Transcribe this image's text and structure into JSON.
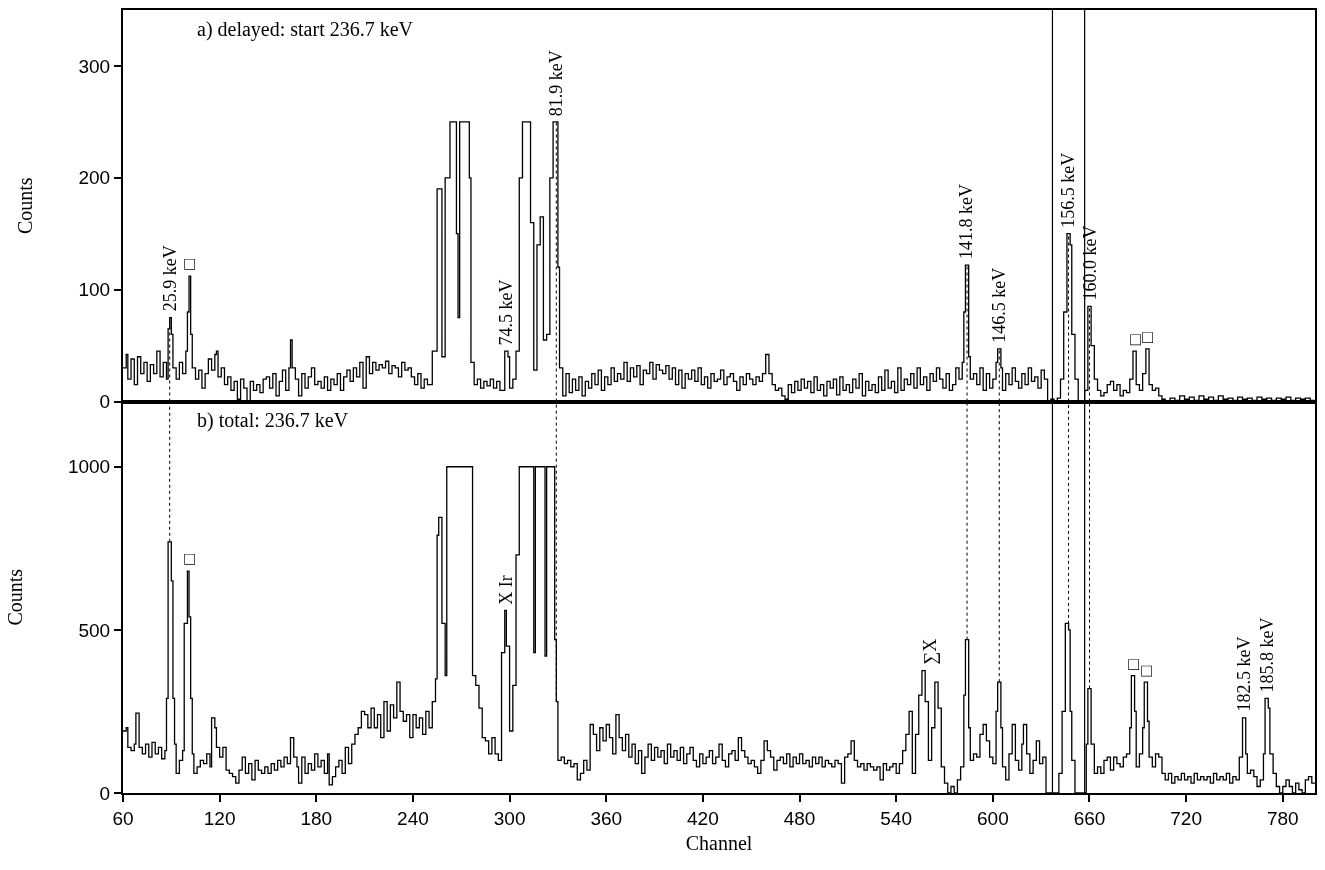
{
  "chart_data": [
    {
      "type": "step",
      "title": "a) delayed: start 236.7 keV",
      "ylabel": "Counts",
      "color": "#000000",
      "x": [
        60,
        62,
        63,
        65,
        67,
        69,
        71,
        73,
        75,
        77,
        79,
        81,
        83,
        85,
        87,
        88,
        89,
        90,
        91,
        93,
        95,
        97,
        99,
        100,
        101,
        102,
        103,
        105,
        107,
        109,
        111,
        113,
        115,
        117,
        118,
        119,
        121,
        123,
        125,
        127,
        129,
        131,
        133,
        135,
        137,
        139,
        141,
        143,
        145,
        147,
        149,
        151,
        153,
        155,
        157,
        159,
        161,
        163,
        164,
        165,
        167,
        169,
        171,
        173,
        175,
        177,
        179,
        181,
        183,
        185,
        187,
        189,
        191,
        193,
        195,
        197,
        199,
        201,
        203,
        205,
        207,
        209,
        211,
        213,
        215,
        217,
        219,
        221,
        223,
        225,
        227,
        229,
        231,
        233,
        235,
        237,
        239,
        241,
        243,
        245,
        247,
        249,
        252,
        255,
        258,
        260,
        263,
        267,
        268,
        269,
        275,
        276,
        278,
        280,
        282,
        284,
        286,
        288,
        290,
        292,
        294,
        297,
        299,
        300,
        302,
        304,
        306,
        308,
        313,
        315,
        317,
        319,
        321,
        323,
        325,
        327,
        330,
        331,
        333,
        335,
        337,
        339,
        341,
        343,
        345,
        347,
        349,
        351,
        353,
        355,
        357,
        359,
        361,
        363,
        365,
        367,
        369,
        371,
        373,
        375,
        377,
        379,
        381,
        383,
        385,
        387,
        389,
        391,
        393,
        395,
        397,
        399,
        401,
        403,
        405,
        407,
        409,
        411,
        413,
        415,
        417,
        419,
        421,
        423,
        425,
        427,
        429,
        431,
        433,
        435,
        437,
        439,
        441,
        443,
        445,
        447,
        449,
        451,
        453,
        455,
        457,
        459,
        461,
        463,
        465,
        467,
        469,
        471,
        473,
        475,
        477,
        479,
        481,
        483,
        485,
        487,
        489,
        491,
        493,
        495,
        497,
        499,
        501,
        503,
        505,
        507,
        509,
        511,
        513,
        515,
        517,
        519,
        521,
        523,
        525,
        527,
        529,
        531,
        533,
        535,
        537,
        539,
        541,
        543,
        545,
        547,
        549,
        551,
        553,
        555,
        557,
        559,
        561,
        563,
        565,
        567,
        569,
        571,
        573,
        575,
        577,
        579,
        581,
        582,
        583,
        585,
        586,
        588,
        590,
        592,
        594,
        596,
        598,
        600,
        602,
        603,
        605,
        606,
        608,
        610,
        612,
        614,
        616,
        618,
        620,
        622,
        624,
        626,
        628,
        630,
        632,
        634,
        636,
        638,
        640,
        642,
        644,
        646,
        648,
        649,
        651,
        653,
        657,
        659,
        661,
        663,
        665,
        667,
        669,
        671,
        673,
        675,
        677,
        679,
        681,
        683,
        685,
        687,
        689,
        691,
        693,
        695,
        697,
        699,
        701,
        703,
        705,
        707,
        710,
        713,
        716,
        719,
        722,
        725,
        728,
        731,
        734,
        737,
        740,
        743,
        746,
        749,
        752,
        755,
        758,
        761,
        764,
        767,
        770,
        773,
        776,
        779,
        782,
        785,
        788,
        791,
        794,
        797,
        800
      ],
      "values": [
        30,
        42,
        20,
        38,
        15,
        40,
        25,
        35,
        18,
        33,
        25,
        45,
        22,
        35,
        20,
        65,
        75,
        60,
        30,
        20,
        35,
        25,
        45,
        80,
        112,
        60,
        30,
        20,
        28,
        12,
        25,
        38,
        28,
        42,
        45,
        22,
        30,
        15,
        22,
        10,
        18,
        2,
        20,
        12,
        0,
        18,
        10,
        15,
        8,
        20,
        22,
        12,
        25,
        5,
        18,
        28,
        10,
        30,
        55,
        30,
        20,
        5,
        25,
        12,
        22,
        30,
        15,
        18,
        12,
        22,
        10,
        20,
        15,
        25,
        10,
        22,
        28,
        18,
        30,
        22,
        35,
        12,
        40,
        25,
        35,
        28,
        33,
        30,
        36,
        25,
        32,
        30,
        22,
        35,
        28,
        30,
        22,
        15,
        25,
        12,
        20,
        15,
        45,
        190,
        40,
        200,
        250,
        150,
        75,
        250,
        200,
        35,
        15,
        20,
        12,
        18,
        14,
        20,
        12,
        18,
        10,
        45,
        40,
        12,
        20,
        45,
        200,
        250,
        160,
        28,
        140,
        165,
        55,
        60,
        200,
        250,
        120,
        30,
        5,
        25,
        8,
        20,
        10,
        22,
        5,
        18,
        12,
        25,
        15,
        28,
        10,
        22,
        15,
        30,
        18,
        25,
        20,
        35,
        18,
        30,
        22,
        32,
        15,
        28,
        25,
        35,
        20,
        33,
        28,
        25,
        32,
        20,
        30,
        15,
        28,
        12,
        25,
        20,
        28,
        18,
        30,
        15,
        22,
        12,
        25,
        18,
        20,
        28,
        15,
        22,
        25,
        18,
        10,
        22,
        15,
        25,
        20,
        15,
        22,
        18,
        25,
        42,
        25,
        15,
        10,
        12,
        5,
        2,
        15,
        8,
        18,
        10,
        20,
        12,
        18,
        8,
        22,
        10,
        15,
        5,
        18,
        12,
        20,
        6,
        22,
        10,
        15,
        8,
        20,
        12,
        25,
        5,
        18,
        10,
        15,
        8,
        22,
        10,
        28,
        12,
        18,
        8,
        30,
        10,
        20,
        15,
        25,
        12,
        30,
        15,
        22,
        10,
        25,
        18,
        30,
        20,
        12,
        25,
        10,
        15,
        30,
        20,
        35,
        80,
        122,
        40,
        20,
        25,
        15,
        30,
        10,
        25,
        12,
        20,
        35,
        47,
        30,
        10,
        25,
        15,
        30,
        18,
        12,
        25,
        15,
        30,
        18,
        22,
        12,
        28,
        20,
        0,
        2,
        0,
        3,
        20,
        80,
        150,
        140,
        60,
        20,
        0,
        10,
        85,
        50,
        20,
        10,
        5,
        8,
        15,
        18,
        10,
        15,
        5,
        10,
        8,
        20,
        45,
        15,
        10,
        25,
        47,
        15,
        10,
        12,
        5,
        2,
        0,
        3,
        1,
        5,
        2,
        4,
        1,
        5,
        2,
        4,
        1,
        5,
        2,
        3,
        1,
        4,
        2,
        3,
        1,
        4,
        2,
        3,
        1,
        3,
        2,
        4,
        1,
        3,
        2,
        3,
        1,
        1
      ],
      "xlim": [
        60,
        800
      ],
      "ylim": [
        0,
        350
      ],
      "xticks": [
        60,
        120,
        180,
        240,
        300,
        360,
        420,
        480,
        540,
        600,
        660,
        720,
        780
      ],
      "yticks": [
        0,
        100,
        200,
        300
      ],
      "tick_labels": "y",
      "annotations": [
        {
          "text": "25.9 keV",
          "x": 89,
          "y": 75
        },
        {
          "text": "□",
          "x": 101,
          "y": 112
        },
        {
          "text": "74.5 keV",
          "x": 298,
          "y": 45
        },
        {
          "text": "81.9 keV",
          "x": 329,
          "y": 250
        },
        {
          "text": "141.8 keV",
          "x": 583,
          "y": 122
        },
        {
          "text": "146.5 keV",
          "x": 604,
          "y": 47
        },
        {
          "text": "156.5 keV",
          "x": 647,
          "y": 150
        },
        {
          "text": "160.0 keV",
          "x": 660,
          "y": 85
        },
        {
          "text": "□",
          "x": 688,
          "y": 45
        },
        {
          "text": "□",
          "x": 696,
          "y": 47
        }
      ],
      "ref_lines": [
        {
          "axis": "x",
          "value": 637,
          "line_style": "solid"
        },
        {
          "axis": "x",
          "value": 657,
          "line_style": "solid"
        },
        {
          "axis": "x",
          "value": 89,
          "line_style": "dotted"
        },
        {
          "axis": "x",
          "value": 329,
          "line_style": "dotted"
        },
        {
          "axis": "x",
          "value": 584,
          "line_style": "dotted"
        },
        {
          "axis": "x",
          "value": 604,
          "line_style": "dotted"
        },
        {
          "axis": "x",
          "value": 647,
          "line_style": "dotted"
        },
        {
          "axis": "x",
          "value": 660,
          "line_style": "dotted"
        }
      ]
    },
    {
      "type": "step",
      "title": "b) total: 236.7 keV",
      "xlabel": "Channel",
      "ylabel": "Counts",
      "color": "#000000",
      "x": [
        60,
        62,
        63,
        65,
        67,
        68,
        70,
        72,
        74,
        76,
        78,
        80,
        82,
        84,
        86,
        87,
        88,
        90,
        91,
        92,
        93,
        95,
        97,
        98,
        100,
        101,
        102,
        103,
        104,
        106,
        108,
        110,
        112,
        114,
        115,
        117,
        118,
        120,
        122,
        124,
        126,
        128,
        130,
        132,
        134,
        136,
        138,
        140,
        142,
        144,
        146,
        148,
        150,
        152,
        154,
        156,
        158,
        160,
        162,
        164,
        166,
        168,
        169,
        171,
        173,
        175,
        177,
        179,
        181,
        183,
        185,
        187,
        188,
        190,
        192,
        194,
        196,
        198,
        200,
        202,
        204,
        206,
        208,
        210,
        212,
        214,
        216,
        218,
        220,
        222,
        224,
        226,
        228,
        230,
        232,
        234,
        236,
        238,
        240,
        242,
        244,
        246,
        248,
        250,
        252,
        254,
        255,
        256,
        258,
        260,
        261,
        277,
        279,
        281,
        283,
        285,
        287,
        289,
        291,
        293,
        295,
        297,
        298,
        300,
        302,
        304,
        306,
        315,
        316,
        322,
        323,
        328,
        329,
        330,
        332,
        334,
        336,
        338,
        340,
        342,
        344,
        346,
        348,
        350,
        352,
        354,
        356,
        358,
        360,
        362,
        364,
        366,
        368,
        370,
        372,
        374,
        376,
        378,
        380,
        382,
        384,
        386,
        388,
        390,
        392,
        394,
        396,
        398,
        400,
        402,
        404,
        406,
        408,
        410,
        412,
        414,
        416,
        418,
        420,
        422,
        424,
        426,
        428,
        430,
        432,
        434,
        436,
        438,
        440,
        442,
        444,
        446,
        448,
        450,
        452,
        454,
        456,
        458,
        460,
        462,
        464,
        466,
        468,
        470,
        472,
        474,
        476,
        478,
        480,
        482,
        484,
        486,
        488,
        490,
        492,
        494,
        496,
        498,
        500,
        502,
        504,
        506,
        508,
        510,
        512,
        514,
        516,
        518,
        520,
        522,
        524,
        526,
        528,
        530,
        532,
        534,
        536,
        538,
        540,
        542,
        544,
        546,
        548,
        550,
        552,
        554,
        556,
        558,
        560,
        562,
        564,
        566,
        568,
        570,
        572,
        574,
        576,
        578,
        580,
        582,
        583,
        585,
        586,
        588,
        590,
        592,
        594,
        596,
        598,
        600,
        602,
        603,
        605,
        606,
        608,
        610,
        612,
        614,
        616,
        618,
        619,
        621,
        623,
        625,
        627,
        629,
        631,
        633,
        641,
        643,
        645,
        647,
        648,
        649,
        651,
        656,
        658,
        659,
        661,
        663,
        665,
        667,
        669,
        671,
        673,
        675,
        677,
        679,
        681,
        683,
        685,
        686,
        688,
        689,
        691,
        693,
        694,
        696,
        697,
        699,
        701,
        703,
        705,
        707,
        709,
        711,
        713,
        715,
        717,
        719,
        721,
        723,
        725,
        727,
        729,
        731,
        733,
        735,
        737,
        739,
        741,
        743,
        745,
        747,
        749,
        751,
        753,
        755,
        757,
        758,
        760,
        762,
        764,
        766,
        768,
        769,
        771,
        772,
        774,
        776,
        778,
        780,
        782,
        784,
        786,
        788,
        790,
        792,
        794,
        796,
        798,
        800
      ],
      "values": [
        190,
        200,
        140,
        130,
        150,
        245,
        140,
        120,
        150,
        110,
        155,
        120,
        140,
        105,
        130,
        290,
        770,
        650,
        290,
        150,
        60,
        100,
        130,
        520,
        680,
        540,
        290,
        120,
        60,
        80,
        100,
        90,
        120,
        80,
        230,
        200,
        140,
        110,
        140,
        70,
        60,
        50,
        30,
        70,
        110,
        60,
        90,
        40,
        100,
        70,
        60,
        80,
        60,
        90,
        70,
        100,
        80,
        110,
        90,
        170,
        110,
        80,
        30,
        110,
        60,
        90,
        70,
        120,
        80,
        100,
        60,
        120,
        25,
        50,
        80,
        100,
        60,
        140,
        90,
        150,
        180,
        200,
        250,
        240,
        200,
        260,
        200,
        240,
        170,
        280,
        190,
        270,
        230,
        340,
        250,
        220,
        240,
        170,
        240,
        200,
        230,
        180,
        250,
        200,
        280,
        350,
        790,
        845,
        520,
        360,
        1000,
        360,
        330,
        260,
        170,
        160,
        120,
        170,
        120,
        100,
        430,
        560,
        450,
        190,
        330,
        730,
        1000,
        430,
        1000,
        420,
        1000,
        470,
        280,
        100,
        110,
        90,
        100,
        80,
        90,
        40,
        60,
        100,
        70,
        210,
        180,
        130,
        200,
        160,
        210,
        170,
        120,
        240,
        170,
        130,
        180,
        110,
        150,
        90,
        130,
        60,
        110,
        150,
        100,
        140,
        110,
        130,
        90,
        150,
        110,
        130,
        100,
        140,
        90,
        120,
        140,
        100,
        80,
        120,
        90,
        110,
        130,
        90,
        110,
        150,
        100,
        80,
        120,
        130,
        100,
        170,
        130,
        110,
        90,
        100,
        80,
        60,
        100,
        160,
        130,
        110,
        70,
        100,
        110,
        90,
        120,
        80,
        110,
        90,
        120,
        90,
        100,
        80,
        110,
        90,
        110,
        80,
        100,
        90,
        80,
        100,
        90,
        30,
        110,
        120,
        160,
        100,
        80,
        90,
        70,
        90,
        80,
        70,
        80,
        40,
        90,
        70,
        80,
        90,
        60,
        90,
        130,
        180,
        250,
        60,
        180,
        300,
        375,
        280,
        100,
        200,
        340,
        260,
        80,
        30,
        0,
        20,
        0,
        40,
        80,
        300,
        470,
        200,
        100,
        120,
        110,
        180,
        210,
        160,
        110,
        90,
        250,
        340,
        200,
        80,
        40,
        120,
        210,
        100,
        70,
        150,
        210,
        120,
        60,
        100,
        160,
        90,
        110,
        0,
        60,
        250,
        520,
        500,
        250,
        100,
        0,
        0,
        150,
        320,
        150,
        60,
        80,
        60,
        100,
        110,
        70,
        110,
        90,
        80,
        110,
        120,
        200,
        360,
        250,
        80,
        120,
        200,
        340,
        220,
        110,
        80,
        120,
        110,
        60,
        40,
        60,
        30,
        50,
        40,
        60,
        40,
        50,
        30,
        60,
        40,
        50,
        40,
        50,
        30,
        60,
        40,
        50,
        40,
        60,
        30,
        50,
        40,
        110,
        230,
        120,
        60,
        70,
        50,
        20,
        40,
        120,
        290,
        260,
        120,
        60,
        20,
        0,
        20,
        40,
        20,
        0,
        30,
        10,
        0,
        40,
        50,
        30,
        30
      ],
      "xlim": [
        60,
        800
      ],
      "ylim": [
        0,
        1200
      ],
      "xticks": [
        60,
        120,
        180,
        240,
        300,
        360,
        420,
        480,
        540,
        600,
        660,
        720,
        780
      ],
      "yticks": [
        0,
        500,
        1000
      ],
      "annotations": [
        {
          "text": "□",
          "x": 101,
          "y": 680
        },
        {
          "text": "X Ir",
          "x": 298,
          "y": 560
        },
        {
          "text": "∑X",
          "x": 561,
          "y": 375
        },
        {
          "text": "□",
          "x": 687,
          "y": 360
        },
        {
          "text": "□",
          "x": 695,
          "y": 340
        },
        {
          "text": "182.5 keV",
          "x": 756,
          "y": 230
        },
        {
          "text": "185.8 keV",
          "x": 770,
          "y": 290
        }
      ],
      "ref_lines": [
        {
          "axis": "x",
          "value": 637,
          "line_style": "solid"
        },
        {
          "axis": "x",
          "value": 657,
          "line_style": "solid"
        },
        {
          "axis": "x",
          "value": 89,
          "line_style": "dotted"
        },
        {
          "axis": "x",
          "value": 329,
          "line_style": "dotted"
        },
        {
          "axis": "x",
          "value": 584,
          "line_style": "dotted"
        },
        {
          "axis": "x",
          "value": 604,
          "line_style": "dotted"
        },
        {
          "axis": "x",
          "value": 647,
          "line_style": "dotted"
        },
        {
          "axis": "x",
          "value": 660,
          "line_style": "dotted"
        }
      ]
    }
  ]
}
